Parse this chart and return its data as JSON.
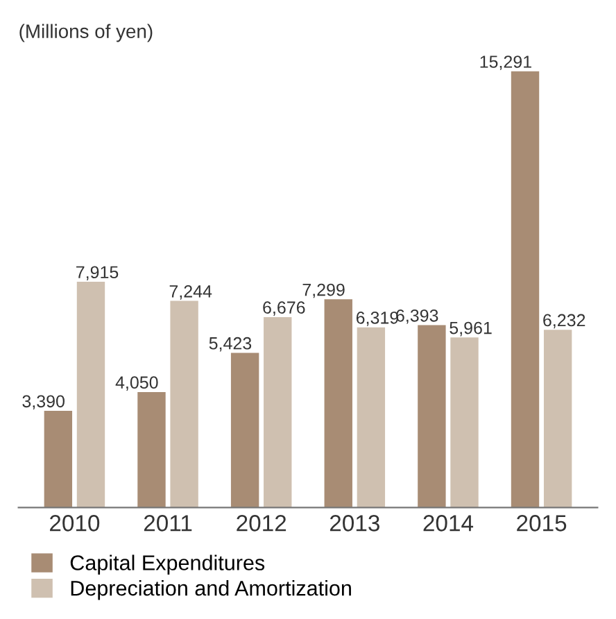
{
  "chart_data": {
    "type": "bar",
    "title": "(Millions of yen)",
    "categories": [
      "2010",
      "2011",
      "2012",
      "2013",
      "2014",
      "2015"
    ],
    "series": [
      {
        "name": "Capital Expenditures",
        "color": "#a88c74",
        "values": [
          3390,
          4050,
          5423,
          7299,
          6393,
          15291
        ],
        "value_labels": [
          "3,390",
          "4,050",
          "5,423",
          "7,299",
          "6,393",
          "15,291"
        ]
      },
      {
        "name": "Depreciation and Amortization",
        "color": "#cfc0b0",
        "values": [
          7915,
          7244,
          6676,
          6319,
          5961,
          6232
        ],
        "value_labels": [
          "7,915",
          "7,244",
          "6,676",
          "6,319",
          "5,961",
          "6,232"
        ]
      }
    ],
    "legend": "bottom left",
    "grid": false
  }
}
